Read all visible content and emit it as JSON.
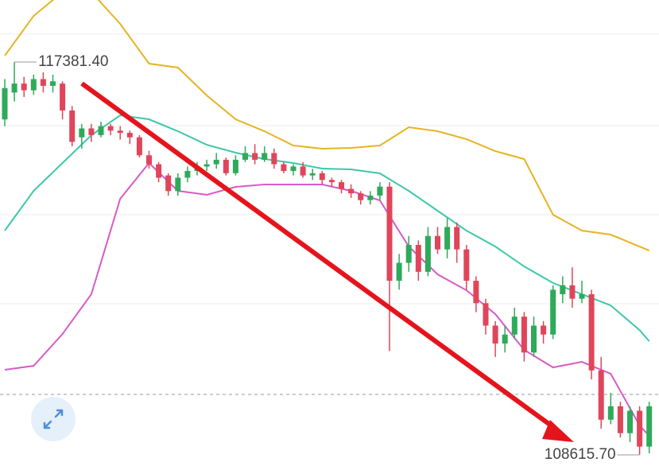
{
  "chart_data": {
    "type": "candlestick",
    "ylim": [
      108367,
      118765
    ],
    "up_color": "#2eaa5a",
    "down_color": "#e0455a",
    "candles": [
      [
        116100,
        117000,
        115950,
        116800
      ],
      [
        116700,
        117381.4,
        116500,
        116900
      ],
      [
        116900,
        117050,
        116600,
        116750
      ],
      [
        116750,
        117100,
        116650,
        117000
      ],
      [
        117000,
        117150,
        116700,
        116850
      ],
      [
        116850,
        117100,
        116700,
        116950
      ],
      [
        116900,
        116950,
        116100,
        116300
      ],
      [
        116300,
        116400,
        115500,
        115600
      ],
      [
        115700,
        116000,
        115450,
        115900
      ],
      [
        115900,
        116000,
        115600,
        115750
      ],
      [
        115750,
        116050,
        115700,
        115950
      ],
      [
        115950,
        116000,
        115750,
        115850
      ],
      [
        115850,
        115950,
        115650,
        115800
      ],
      [
        115800,
        115850,
        115550,
        115700
      ],
      [
        115700,
        115750,
        115250,
        115300
      ],
      [
        115300,
        115400,
        115000,
        115100
      ],
      [
        115100,
        115150,
        114700,
        114800
      ],
      [
        114850,
        114900,
        114400,
        114500
      ],
      [
        114500,
        114900,
        114400,
        114800
      ],
      [
        114800,
        115050,
        114700,
        114950
      ],
      [
        114950,
        115150,
        114850,
        115050
      ],
      [
        115050,
        115200,
        114950,
        115100
      ],
      [
        115100,
        115350,
        115000,
        115200
      ],
      [
        115200,
        115250,
        114850,
        114900
      ],
      [
        114900,
        115300,
        114850,
        115200
      ],
      [
        115200,
        115500,
        115150,
        115350
      ],
      [
        115350,
        115550,
        115100,
        115200
      ],
      [
        115200,
        115500,
        115150,
        115350
      ],
      [
        115350,
        115450,
        115000,
        115100
      ],
      [
        115100,
        115150,
        114900,
        114950
      ],
      [
        114950,
        115100,
        114850,
        115050
      ],
      [
        115050,
        115150,
        114800,
        114850
      ],
      [
        114850,
        115000,
        114750,
        114900
      ],
      [
        114900,
        114950,
        114650,
        114750
      ],
      [
        114750,
        114800,
        114600,
        114700
      ],
      [
        114700,
        114750,
        114450,
        114550
      ],
      [
        114550,
        114650,
        114350,
        114450
      ],
      [
        114450,
        114500,
        114200,
        114300
      ],
      [
        114300,
        114500,
        114200,
        114400
      ],
      [
        114400,
        114700,
        114300,
        114600
      ],
      [
        114600,
        114700,
        110930,
        112500
      ],
      [
        112500,
        113100,
        112300,
        112900
      ],
      [
        112900,
        113500,
        112700,
        113300
      ],
      [
        113300,
        113400,
        112500,
        112700
      ],
      [
        112700,
        113700,
        112600,
        113500
      ],
      [
        113500,
        113700,
        113100,
        113200
      ],
      [
        113200,
        113900,
        113000,
        113700
      ],
      [
        113700,
        113800,
        112900,
        113200
      ],
      [
        113200,
        113300,
        112300,
        112500
      ],
      [
        112500,
        112600,
        111800,
        112000
      ],
      [
        112000,
        112100,
        111300,
        111500
      ],
      [
        111500,
        111600,
        110800,
        111100
      ],
      [
        111100,
        111500,
        110900,
        111300
      ],
      [
        111300,
        111900,
        111200,
        111700
      ],
      [
        111700,
        111800,
        110700,
        110900
      ],
      [
        110900,
        111700,
        110800,
        111500
      ],
      [
        111500,
        111600,
        111100,
        111300
      ],
      [
        111300,
        112400,
        111200,
        112300
      ],
      [
        112200,
        112600,
        112000,
        112400
      ],
      [
        112400,
        112800,
        111900,
        112100
      ],
      [
        112100,
        112500,
        112000,
        112200
      ],
      [
        112200,
        112300,
        110300,
        110500
      ],
      [
        110500,
        110800,
        109200,
        109400
      ],
      [
        109400,
        110000,
        109300,
        109700
      ],
      [
        109700,
        109800,
        109000,
        109100
      ],
      [
        109100,
        109700,
        108900,
        109600
      ],
      [
        109600,
        109700,
        108615.7,
        108800
      ],
      [
        108800,
        109800,
        108650,
        109700
      ]
    ],
    "bands": [
      {
        "color": "#e6b422",
        "x": [
          0,
          3,
          6,
          9,
          12,
          15,
          18,
          21,
          24,
          27,
          30,
          33,
          36,
          39,
          42,
          45,
          48,
          51,
          54,
          57,
          60,
          63,
          66,
          67
        ],
        "values": [
          117523,
          118410,
          118942,
          118942,
          118233,
          117345,
          117257,
          116636,
          116103,
          115837,
          115518,
          115447,
          115465,
          115518,
          115926,
          115837,
          115660,
          115393,
          115216,
          113974,
          113619,
          113530,
          113264,
          113175
        ]
      },
      {
        "color": "#3cc8a8",
        "x": [
          0,
          3,
          6,
          9,
          12,
          15,
          18,
          21,
          24,
          27,
          30,
          33,
          36,
          39,
          42,
          45,
          48,
          51,
          54,
          57,
          60,
          63,
          66,
          67
        ],
        "values": [
          113619,
          114506,
          115127,
          115748,
          116192,
          116103,
          115837,
          115535,
          115358,
          115216,
          115127,
          115003,
          114985,
          114897,
          114506,
          114063,
          113619,
          113264,
          112820,
          112450,
          112200,
          111950,
          111400,
          111150
        ]
      },
      {
        "color": "#d85ac8",
        "x": [
          0,
          3,
          6,
          9,
          12,
          15,
          18,
          21,
          24,
          27,
          30,
          33,
          36,
          39,
          42,
          45,
          48,
          51,
          54,
          57,
          60,
          63,
          66,
          67
        ],
        "values": [
          110514,
          110602,
          111312,
          112200,
          114329,
          115127,
          114506,
          114418,
          114595,
          114648,
          114648,
          114648,
          114506,
          114293,
          113264,
          112643,
          112288,
          111756,
          110957,
          110567,
          110691,
          110425,
          109271,
          109040
        ]
      }
    ],
    "high_marker": {
      "value": 117381.4,
      "label": "117381.40"
    },
    "low_marker": {
      "value": 108615.7,
      "label": "108615.70"
    }
  }
}
